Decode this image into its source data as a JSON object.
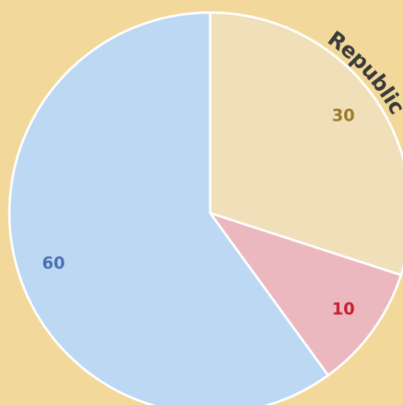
{
  "chart_data": {
    "type": "pie",
    "values": [
      30,
      10,
      60
    ],
    "colors": [
      "#f1dfb9",
      "#ebb8c0",
      "#bdd8f3"
    ],
    "label_colors": [
      "#9a7a2a",
      "#c8202e",
      "#4a70b4"
    ],
    "annotation": "Republic"
  }
}
